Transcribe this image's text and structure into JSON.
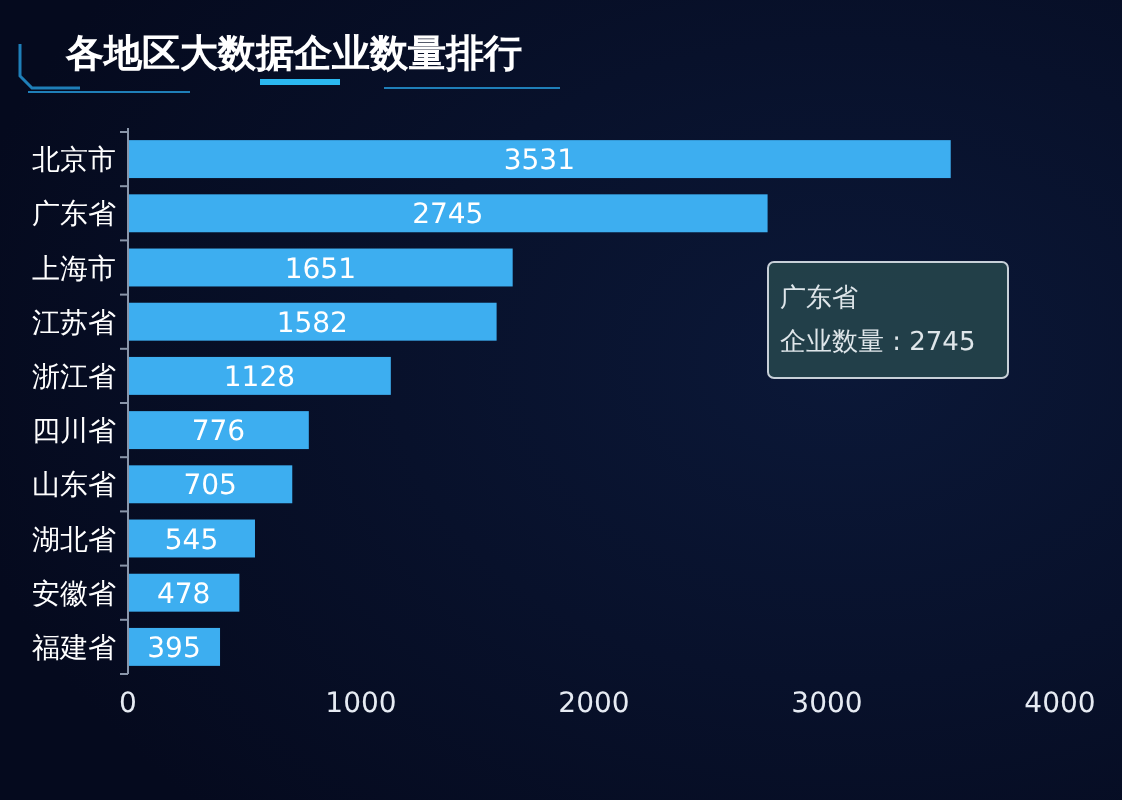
{
  "chart_data": {
    "type": "bar",
    "orientation": "horizontal",
    "title": "各地区大数据企业数量排行",
    "categories": [
      "北京市",
      "广东省",
      "上海市",
      "江苏省",
      "浙江省",
      "四川省",
      "山东省",
      "湖北省",
      "安徽省",
      "福建省"
    ],
    "values": [
      3531,
      2745,
      1651,
      1582,
      1128,
      776,
      705,
      545,
      478,
      395
    ],
    "color": "#3daef0",
    "xlim": [
      0,
      4000
    ],
    "xticks": [
      0,
      1000,
      2000,
      3000,
      4000
    ],
    "data_labels": true,
    "annotations": [
      "广东省",
      "企业数量 : 2745"
    ]
  }
}
